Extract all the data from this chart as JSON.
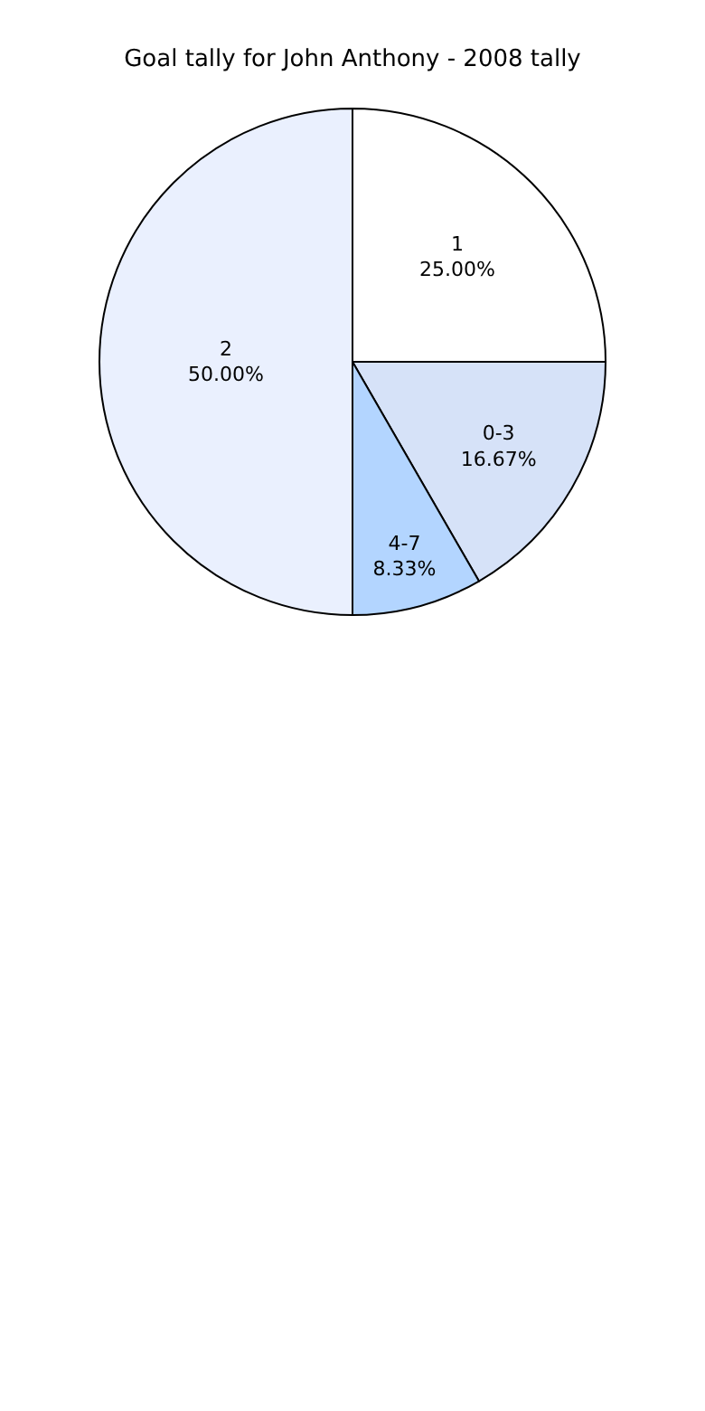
{
  "chart_data": {
    "type": "pie",
    "title": "Goal tally for John Anthony - 2008 tally",
    "categories": [
      "1",
      "0-3",
      "4-7",
      "2"
    ],
    "values": [
      25.0,
      16.67,
      8.33,
      50.0
    ],
    "value_labels": [
      "25.00%",
      "16.67%",
      "8.33%",
      "50.00%"
    ],
    "colors": [
      "#ffffff",
      "#d6e2f8",
      "#b3d5ff",
      "#eaf0fe"
    ],
    "legend": false
  }
}
